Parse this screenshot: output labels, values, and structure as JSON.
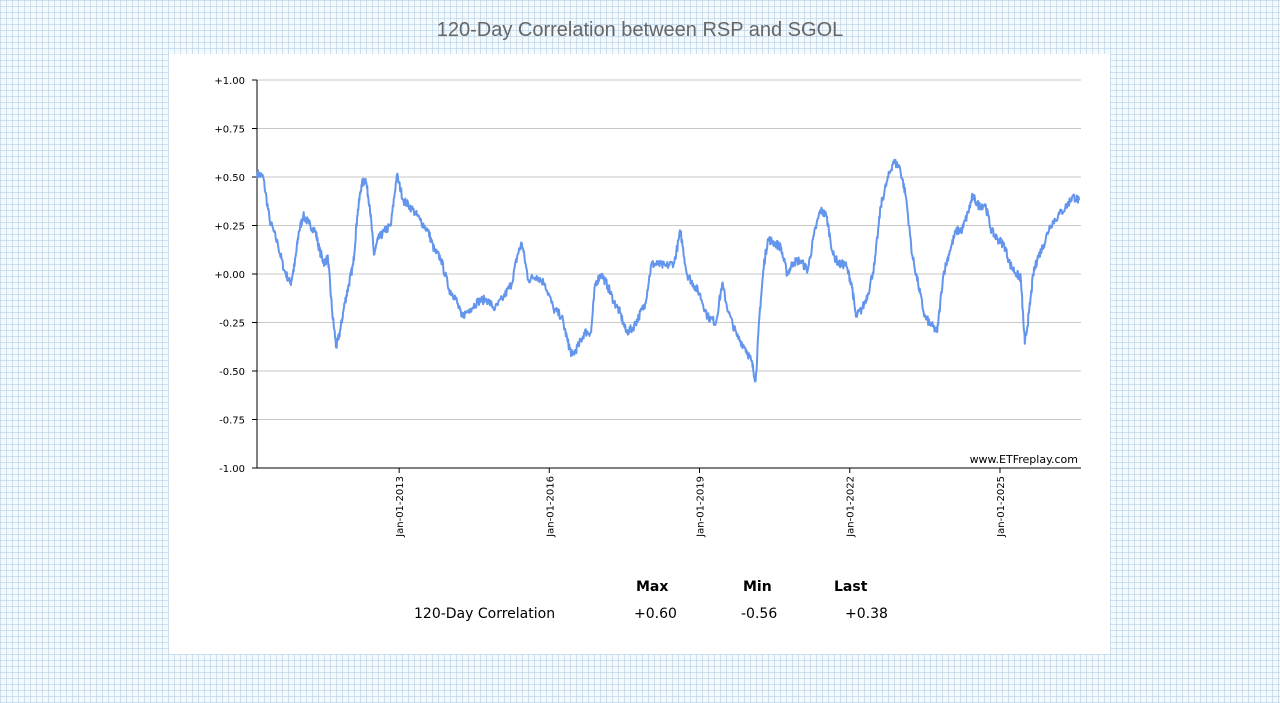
{
  "page_title": "120-Day Correlation between RSP and SGOL",
  "chart_data": {
    "type": "line",
    "title": "120-Day Correlation between RSP and SGOL",
    "xlabel": "",
    "ylabel": "",
    "ylim": [
      -1,
      1
    ],
    "x_range": [
      "2010-03-01",
      "2026-08-15"
    ],
    "y_ticks": [
      "+1.00",
      "+0.75",
      "+0.50",
      "+0.25",
      "+0.00",
      "-0.25",
      "-0.50",
      "-0.75",
      "-1.00"
    ],
    "x_ticks": [
      {
        "date": "2013-01-01",
        "label": "Jan-01-2013"
      },
      {
        "date": "2016-01-01",
        "label": "Jan-01-2016"
      },
      {
        "date": "2019-01-01",
        "label": "Jan-01-2019"
      },
      {
        "date": "2022-01-01",
        "label": "Jan-01-2022"
      },
      {
        "date": "2025-01-01",
        "label": "Jan-01-2025"
      }
    ],
    "grid": true,
    "watermark": "www.ETFreplay.com",
    "line_color": "#6495ed",
    "series": [
      {
        "name": "120-Day Correlation",
        "points": [
          [
            "2010-03-01",
            0.52
          ],
          [
            "2010-04-15",
            0.5
          ],
          [
            "2010-06-01",
            0.28
          ],
          [
            "2010-08-01",
            0.15
          ],
          [
            "2010-09-15",
            0.02
          ],
          [
            "2010-11-01",
            -0.05
          ],
          [
            "2010-12-01",
            0.05
          ],
          [
            "2011-01-01",
            0.22
          ],
          [
            "2011-02-01",
            0.3
          ],
          [
            "2011-03-15",
            0.26
          ],
          [
            "2011-05-01",
            0.22
          ],
          [
            "2011-06-01",
            0.12
          ],
          [
            "2011-07-01",
            0.06
          ],
          [
            "2011-08-01",
            0.08
          ],
          [
            "2011-09-01",
            -0.2
          ],
          [
            "2011-10-01",
            -0.38
          ],
          [
            "2011-11-01",
            -0.28
          ],
          [
            "2011-12-01",
            -0.15
          ],
          [
            "2012-01-01",
            -0.05
          ],
          [
            "2012-02-01",
            0.05
          ],
          [
            "2012-03-01",
            0.3
          ],
          [
            "2012-04-01",
            0.46
          ],
          [
            "2012-05-01",
            0.49
          ],
          [
            "2012-06-01",
            0.35
          ],
          [
            "2012-07-01",
            0.1
          ],
          [
            "2012-08-01",
            0.18
          ],
          [
            "2012-09-15",
            0.22
          ],
          [
            "2012-11-01",
            0.25
          ],
          [
            "2012-12-15",
            0.51
          ],
          [
            "2013-02-01",
            0.38
          ],
          [
            "2013-04-01",
            0.34
          ],
          [
            "2013-06-01",
            0.28
          ],
          [
            "2013-08-01",
            0.22
          ],
          [
            "2013-09-15",
            0.12
          ],
          [
            "2013-11-01",
            0.08
          ],
          [
            "2014-01-01",
            -0.08
          ],
          [
            "2014-02-15",
            -0.12
          ],
          [
            "2014-04-01",
            -0.22
          ],
          [
            "2014-06-01",
            -0.18
          ],
          [
            "2014-08-01",
            -0.14
          ],
          [
            "2014-10-01",
            -0.13
          ],
          [
            "2014-12-01",
            -0.18
          ],
          [
            "2015-02-01",
            -0.12
          ],
          [
            "2015-04-01",
            -0.05
          ],
          [
            "2015-05-15",
            0.1
          ],
          [
            "2015-06-15",
            0.16
          ],
          [
            "2015-08-01",
            -0.03
          ],
          [
            "2015-10-01",
            -0.01
          ],
          [
            "2015-12-01",
            -0.05
          ],
          [
            "2016-02-01",
            -0.18
          ],
          [
            "2016-04-01",
            -0.22
          ],
          [
            "2016-05-15",
            -0.35
          ],
          [
            "2016-06-15",
            -0.42
          ],
          [
            "2016-08-01",
            -0.37
          ],
          [
            "2016-09-15",
            -0.3
          ],
          [
            "2016-11-01",
            -0.3
          ],
          [
            "2016-12-01",
            -0.05
          ],
          [
            "2017-01-15",
            0.0
          ],
          [
            "2017-03-01",
            -0.06
          ],
          [
            "2017-04-15",
            -0.14
          ],
          [
            "2017-06-01",
            -0.2
          ],
          [
            "2017-07-15",
            -0.3
          ],
          [
            "2017-09-01",
            -0.28
          ],
          [
            "2017-10-15",
            -0.22
          ],
          [
            "2017-12-01",
            -0.15
          ],
          [
            "2018-01-15",
            0.05
          ],
          [
            "2018-03-01",
            0.05
          ],
          [
            "2018-05-01",
            0.04
          ],
          [
            "2018-07-01",
            0.06
          ],
          [
            "2018-08-15",
            0.22
          ],
          [
            "2018-10-01",
            0.0
          ],
          [
            "2018-11-15",
            -0.05
          ],
          [
            "2019-01-01",
            -0.1
          ],
          [
            "2019-03-01",
            -0.22
          ],
          [
            "2019-05-01",
            -0.25
          ],
          [
            "2019-06-15",
            -0.05
          ],
          [
            "2019-08-01",
            -0.2
          ],
          [
            "2019-10-01",
            -0.32
          ],
          [
            "2019-12-01",
            -0.38
          ],
          [
            "2020-01-15",
            -0.45
          ],
          [
            "2020-02-15",
            -0.55
          ],
          [
            "2020-03-15",
            -0.2
          ],
          [
            "2020-04-15",
            0.05
          ],
          [
            "2020-05-15",
            0.18
          ],
          [
            "2020-07-01",
            0.16
          ],
          [
            "2020-08-15",
            0.14
          ],
          [
            "2020-10-01",
            0.0
          ],
          [
            "2020-11-15",
            0.06
          ],
          [
            "2021-01-01",
            0.07
          ],
          [
            "2021-03-01",
            0.02
          ],
          [
            "2021-04-15",
            0.2
          ],
          [
            "2021-06-01",
            0.33
          ],
          [
            "2021-07-15",
            0.3
          ],
          [
            "2021-09-01",
            0.1
          ],
          [
            "2021-10-15",
            0.05
          ],
          [
            "2021-12-01",
            0.05
          ],
          [
            "2022-01-15",
            -0.05
          ],
          [
            "2022-02-15",
            -0.22
          ],
          [
            "2022-04-01",
            -0.18
          ],
          [
            "2022-05-15",
            -0.1
          ],
          [
            "2022-07-01",
            0.05
          ],
          [
            "2022-08-15",
            0.35
          ],
          [
            "2022-10-01",
            0.48
          ],
          [
            "2022-11-15",
            0.58
          ],
          [
            "2023-01-01",
            0.55
          ],
          [
            "2023-02-15",
            0.4
          ],
          [
            "2023-04-01",
            0.1
          ],
          [
            "2023-05-15",
            -0.05
          ],
          [
            "2023-07-01",
            -0.22
          ],
          [
            "2023-08-15",
            -0.26
          ],
          [
            "2023-10-01",
            -0.3
          ],
          [
            "2023-11-15",
            0.0
          ],
          [
            "2024-01-01",
            0.12
          ],
          [
            "2024-02-15",
            0.22
          ],
          [
            "2024-04-01",
            0.23
          ],
          [
            "2024-05-15",
            0.32
          ],
          [
            "2024-06-15",
            0.4
          ],
          [
            "2024-08-01",
            0.35
          ],
          [
            "2024-09-15",
            0.36
          ],
          [
            "2024-11-01",
            0.22
          ],
          [
            "2024-12-15",
            0.18
          ],
          [
            "2025-02-01",
            0.15
          ],
          [
            "2025-03-15",
            0.05
          ],
          [
            "2025-05-01",
            0.0
          ],
          [
            "2025-06-01",
            -0.02
          ],
          [
            "2025-07-01",
            -0.36
          ],
          [
            "2025-08-01",
            -0.2
          ],
          [
            "2025-09-01",
            0.0
          ],
          [
            "2025-10-01",
            0.08
          ],
          [
            "2025-11-15",
            0.15
          ],
          [
            "2026-01-01",
            0.25
          ],
          [
            "2026-03-01",
            0.3
          ],
          [
            "2026-05-01",
            0.35
          ],
          [
            "2026-06-15",
            0.4
          ],
          [
            "2026-08-01",
            0.38
          ]
        ]
      }
    ]
  },
  "stats": {
    "headers": [
      "Max",
      "Min",
      "Last"
    ],
    "row_label": "120-Day Correlation",
    "values": [
      "+0.60",
      "-0.56",
      "+0.38"
    ]
  }
}
